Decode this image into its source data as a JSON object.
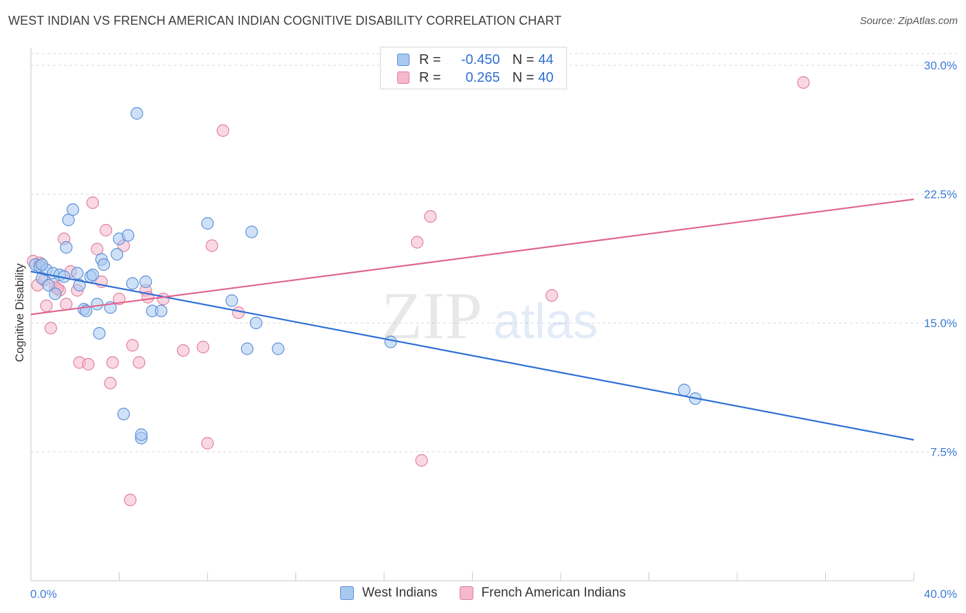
{
  "title": "WEST INDIAN VS FRENCH AMERICAN INDIAN COGNITIVE DISABILITY CORRELATION CHART",
  "source": "Source: ZipAtlas.com",
  "watermark": {
    "zip": "ZIP",
    "atlas": "atlas"
  },
  "legend_stats": [
    {
      "r_label": "R =",
      "r_value": "-0.450",
      "n_label": "N =",
      "n_value": "44"
    },
    {
      "r_label": "R =",
      "r_value": "0.265",
      "n_label": "N =",
      "n_value": "40"
    }
  ],
  "colors": {
    "blue_fill": "#a8c8f0",
    "blue_stroke": "#5b90d8",
    "blue_line": "#2e6fd4",
    "pink_fill": "#f5b8cc",
    "pink_stroke": "#e07fa0",
    "pink_line": "#e0658e",
    "tick_text": "#3d7bd6",
    "grid": "#d9d9d9"
  },
  "chart_data": {
    "type": "scatter",
    "title": "WEST INDIAN VS FRENCH AMERICAN INDIAN COGNITIVE DISABILITY CORRELATION CHART",
    "xlabel": "",
    "ylabel": "Cognitive Disability",
    "xlim": [
      0,
      40
    ],
    "ylim": [
      0,
      31
    ],
    "x_tick_labels": [
      "0.0%",
      "40.0%"
    ],
    "y_ticks": [
      7.5,
      15.0,
      22.5,
      30.0
    ],
    "y_tick_labels": [
      "7.5%",
      "15.0%",
      "22.5%",
      "30.0%"
    ],
    "grid": "horizontal dashed",
    "legend_position": "top-center",
    "series": [
      {
        "name": "West Indians",
        "color": "blue",
        "trend": {
          "x": [
            0,
            40
          ],
          "y": [
            18.0,
            8.2
          ]
        },
        "points": [
          [
            0.2,
            18.4
          ],
          [
            0.4,
            18.3
          ],
          [
            0.5,
            17.6
          ],
          [
            0.7,
            18.1
          ],
          [
            0.8,
            17.2
          ],
          [
            1.0,
            17.9
          ],
          [
            1.1,
            16.7
          ],
          [
            1.3,
            17.8
          ],
          [
            1.5,
            17.7
          ],
          [
            1.6,
            19.4
          ],
          [
            1.7,
            21.0
          ],
          [
            1.9,
            21.6
          ],
          [
            2.1,
            17.9
          ],
          [
            2.2,
            17.2
          ],
          [
            2.4,
            15.8
          ],
          [
            2.5,
            15.7
          ],
          [
            2.7,
            17.7
          ],
          [
            2.8,
            17.8
          ],
          [
            3.0,
            16.1
          ],
          [
            3.1,
            14.4
          ],
          [
            3.2,
            18.7
          ],
          [
            3.3,
            18.4
          ],
          [
            3.6,
            15.9
          ],
          [
            3.9,
            19.0
          ],
          [
            4.0,
            19.9
          ],
          [
            4.2,
            9.7
          ],
          [
            4.4,
            20.1
          ],
          [
            4.6,
            17.3
          ],
          [
            4.8,
            27.2
          ],
          [
            5.0,
            8.3
          ],
          [
            5.0,
            8.5
          ],
          [
            5.2,
            17.4
          ],
          [
            5.5,
            15.7
          ],
          [
            5.9,
            15.7
          ],
          [
            8.0,
            20.8
          ],
          [
            9.1,
            16.3
          ],
          [
            9.8,
            13.5
          ],
          [
            10.0,
            20.3
          ],
          [
            10.2,
            15.0
          ],
          [
            11.2,
            13.5
          ],
          [
            16.3,
            13.9
          ],
          [
            29.6,
            11.1
          ],
          [
            30.1,
            10.6
          ],
          [
            0.5,
            18.4
          ]
        ]
      },
      {
        "name": "French American Indians",
        "color": "pink",
        "trend": {
          "x": [
            0,
            40
          ],
          "y": [
            15.5,
            22.2
          ]
        },
        "points": [
          [
            0.1,
            18.6
          ],
          [
            0.3,
            17.2
          ],
          [
            0.6,
            17.5
          ],
          [
            0.7,
            16.0
          ],
          [
            0.9,
            14.7
          ],
          [
            1.1,
            17.1
          ],
          [
            1.3,
            16.9
          ],
          [
            1.5,
            19.9
          ],
          [
            1.6,
            16.1
          ],
          [
            1.8,
            18.0
          ],
          [
            2.1,
            16.9
          ],
          [
            2.2,
            12.7
          ],
          [
            2.6,
            12.6
          ],
          [
            2.8,
            22.0
          ],
          [
            3.0,
            19.3
          ],
          [
            3.2,
            17.4
          ],
          [
            3.4,
            20.4
          ],
          [
            3.6,
            11.5
          ],
          [
            3.7,
            12.7
          ],
          [
            4.0,
            16.4
          ],
          [
            4.2,
            19.5
          ],
          [
            4.5,
            4.7
          ],
          [
            4.6,
            13.7
          ],
          [
            4.9,
            12.7
          ],
          [
            5.2,
            16.9
          ],
          [
            5.3,
            16.5
          ],
          [
            6.0,
            16.4
          ],
          [
            6.9,
            13.4
          ],
          [
            7.8,
            13.6
          ],
          [
            8.0,
            8.0
          ],
          [
            8.2,
            19.5
          ],
          [
            8.7,
            26.2
          ],
          [
            9.4,
            15.6
          ],
          [
            17.5,
            19.7
          ],
          [
            17.7,
            7.0
          ],
          [
            18.1,
            21.2
          ],
          [
            23.6,
            16.6
          ],
          [
            35.0,
            29.0
          ],
          [
            0.4,
            18.5
          ],
          [
            1.2,
            17.0
          ]
        ]
      }
    ]
  },
  "bottom_legend": [
    "West Indians",
    "French American Indians"
  ]
}
